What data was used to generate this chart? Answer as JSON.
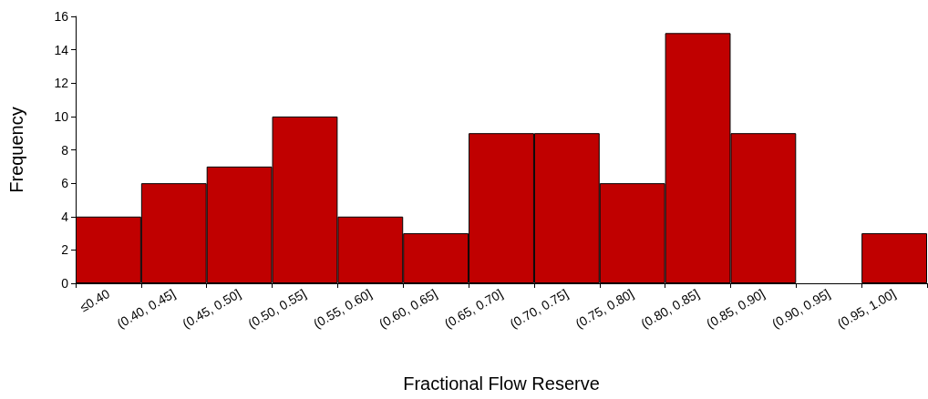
{
  "chart_data": {
    "type": "bar",
    "xlabel": "Fractional Flow Reserve",
    "ylabel": "Frequency",
    "categories": [
      "≤0.40",
      "(0.40, 0.45]",
      "(0.45, 0.50]",
      "(0.50, 0.55]",
      "(0.55, 0.60]",
      "(0.60, 0.65]",
      "(0.65, 0.70]",
      "(0.70, 0.75]",
      "(0.75, 0.80]",
      "(0.80, 0.85]",
      "(0.85, 0.90]",
      "(0.90, 0.95]",
      "(0.95, 1.00]"
    ],
    "values": [
      4,
      6,
      7,
      10,
      4,
      3,
      9,
      9,
      6,
      15,
      9,
      0,
      3
    ],
    "color": "#c00000",
    "ylim": [
      0,
      16
    ],
    "yticks": [
      0,
      2,
      4,
      6,
      8,
      10,
      12,
      14,
      16
    ],
    "grid": false
  }
}
